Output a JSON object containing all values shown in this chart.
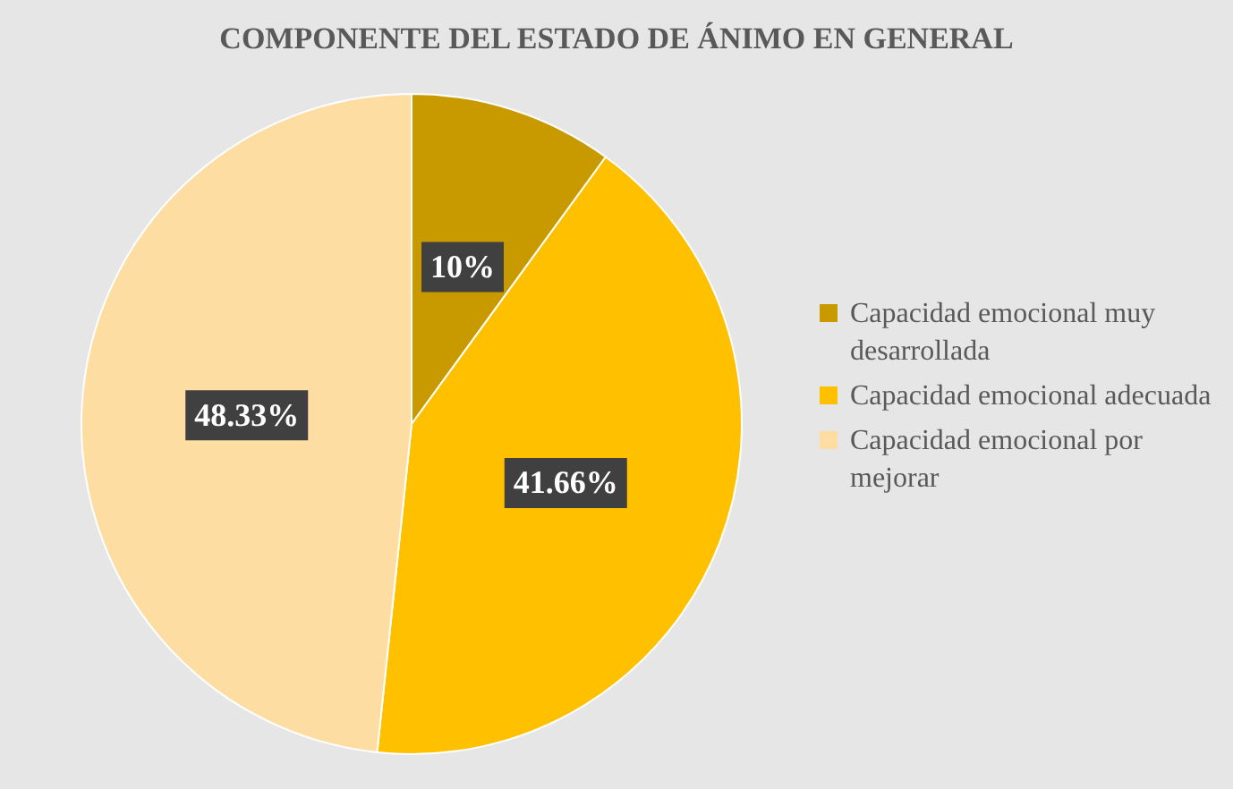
{
  "chart_data": {
    "type": "pie",
    "title": "COMPONENTE DEL ESTADO DE ÁNIMO EN GENERAL",
    "categories": [
      "Capacidad emocional muy desarrollada",
      "Capacidad emocional adecuada",
      "Capacidad emocional por mejorar"
    ],
    "values": [
      10,
      41.66,
      48.33
    ],
    "colors": [
      "#c99a00",
      "#ffc000",
      "#fedda3"
    ],
    "value_labels": [
      "10%",
      "41.66%",
      "48.33%"
    ],
    "legend": "right"
  }
}
